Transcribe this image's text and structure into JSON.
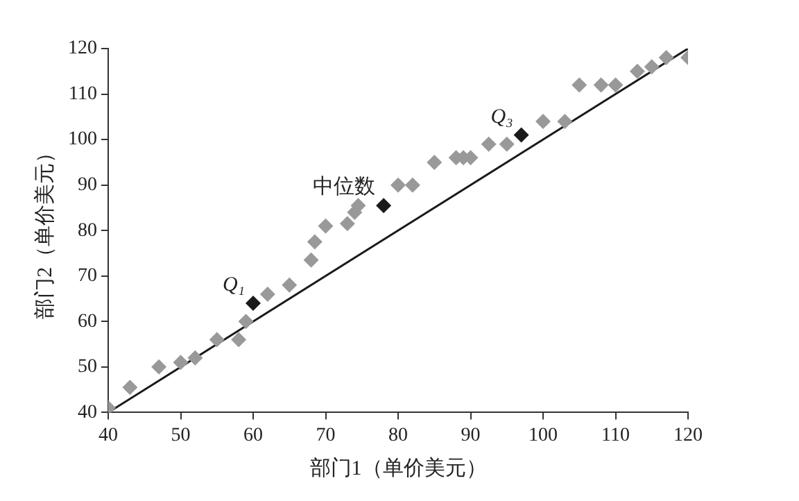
{
  "chart_data": {
    "type": "scatter",
    "xlabel": "部门1（单价美元）",
    "ylabel": "部门2（单价美元）",
    "xlim": [
      40,
      120
    ],
    "xticks": [
      40,
      50,
      60,
      70,
      80,
      90,
      100,
      110,
      120
    ],
    "ylim": [
      40,
      120
    ],
    "yticks": [
      40,
      50,
      60,
      70,
      80,
      90,
      100,
      110,
      120
    ],
    "grid": false,
    "legend": false,
    "marker": "diamond",
    "series": [
      {
        "type": "scatter",
        "color": "#999999",
        "x": [
          40,
          43,
          47,
          50,
          52,
          55,
          58,
          59,
          62,
          65,
          68,
          68.5,
          70,
          73,
          74,
          74.5,
          80,
          82,
          85,
          88,
          89,
          90,
          92.5,
          95,
          100,
          103,
          105,
          108,
          110,
          113,
          115,
          117,
          120
        ],
        "values": [
          41,
          45.5,
          50,
          51,
          52,
          56,
          56,
          60,
          66,
          68,
          73.5,
          77.5,
          81,
          81.5,
          84,
          85.5,
          90,
          90,
          95,
          96,
          96,
          96,
          99,
          99,
          104,
          104,
          112,
          112,
          112,
          115,
          116,
          118,
          118
        ]
      },
      {
        "type": "scatter",
        "color": "#1a1a1a",
        "x": [
          60,
          78,
          97
        ],
        "values": [
          64,
          85.5,
          101
        ]
      },
      {
        "type": "line",
        "color": "#1a1a1a",
        "marker": "none",
        "x": [
          40,
          120
        ],
        "values": [
          40,
          120
        ]
      }
    ],
    "annotations": [
      {
        "text": "Q₁",
        "x": 60,
        "y": 64
      },
      {
        "text": "中位数",
        "x": 78,
        "y": 85.5
      },
      {
        "text": "Q₃",
        "x": 97,
        "y": 101
      }
    ]
  }
}
